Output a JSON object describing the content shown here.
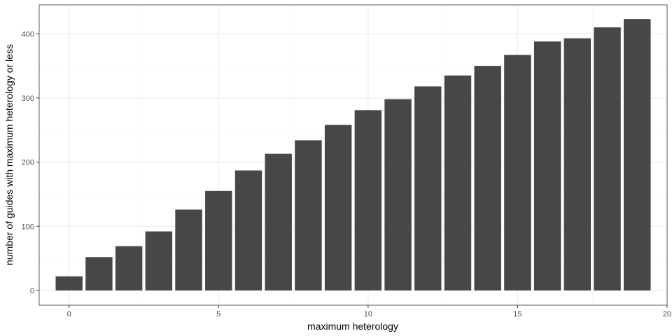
{
  "chart_data": {
    "type": "bar",
    "xlabel": "maximum heterology",
    "ylabel": "number of guides with maximum heterology or less",
    "x": [
      0,
      1,
      2,
      3,
      4,
      5,
      6,
      7,
      8,
      9,
      10,
      11,
      12,
      13,
      14,
      15,
      16,
      17,
      18,
      19
    ],
    "values": [
      22,
      52,
      69,
      92,
      126,
      155,
      187,
      213,
      234,
      258,
      281,
      298,
      318,
      335,
      350,
      367,
      388,
      393,
      410,
      423
    ],
    "xlim": [
      -1,
      20
    ],
    "ylim": [
      -23,
      445
    ],
    "x_ticks": [
      0,
      5,
      10,
      15,
      20
    ],
    "y_ticks": [
      0,
      100,
      200,
      300,
      400
    ],
    "bar_color": "#474747",
    "grid": true,
    "theme": "bw"
  }
}
